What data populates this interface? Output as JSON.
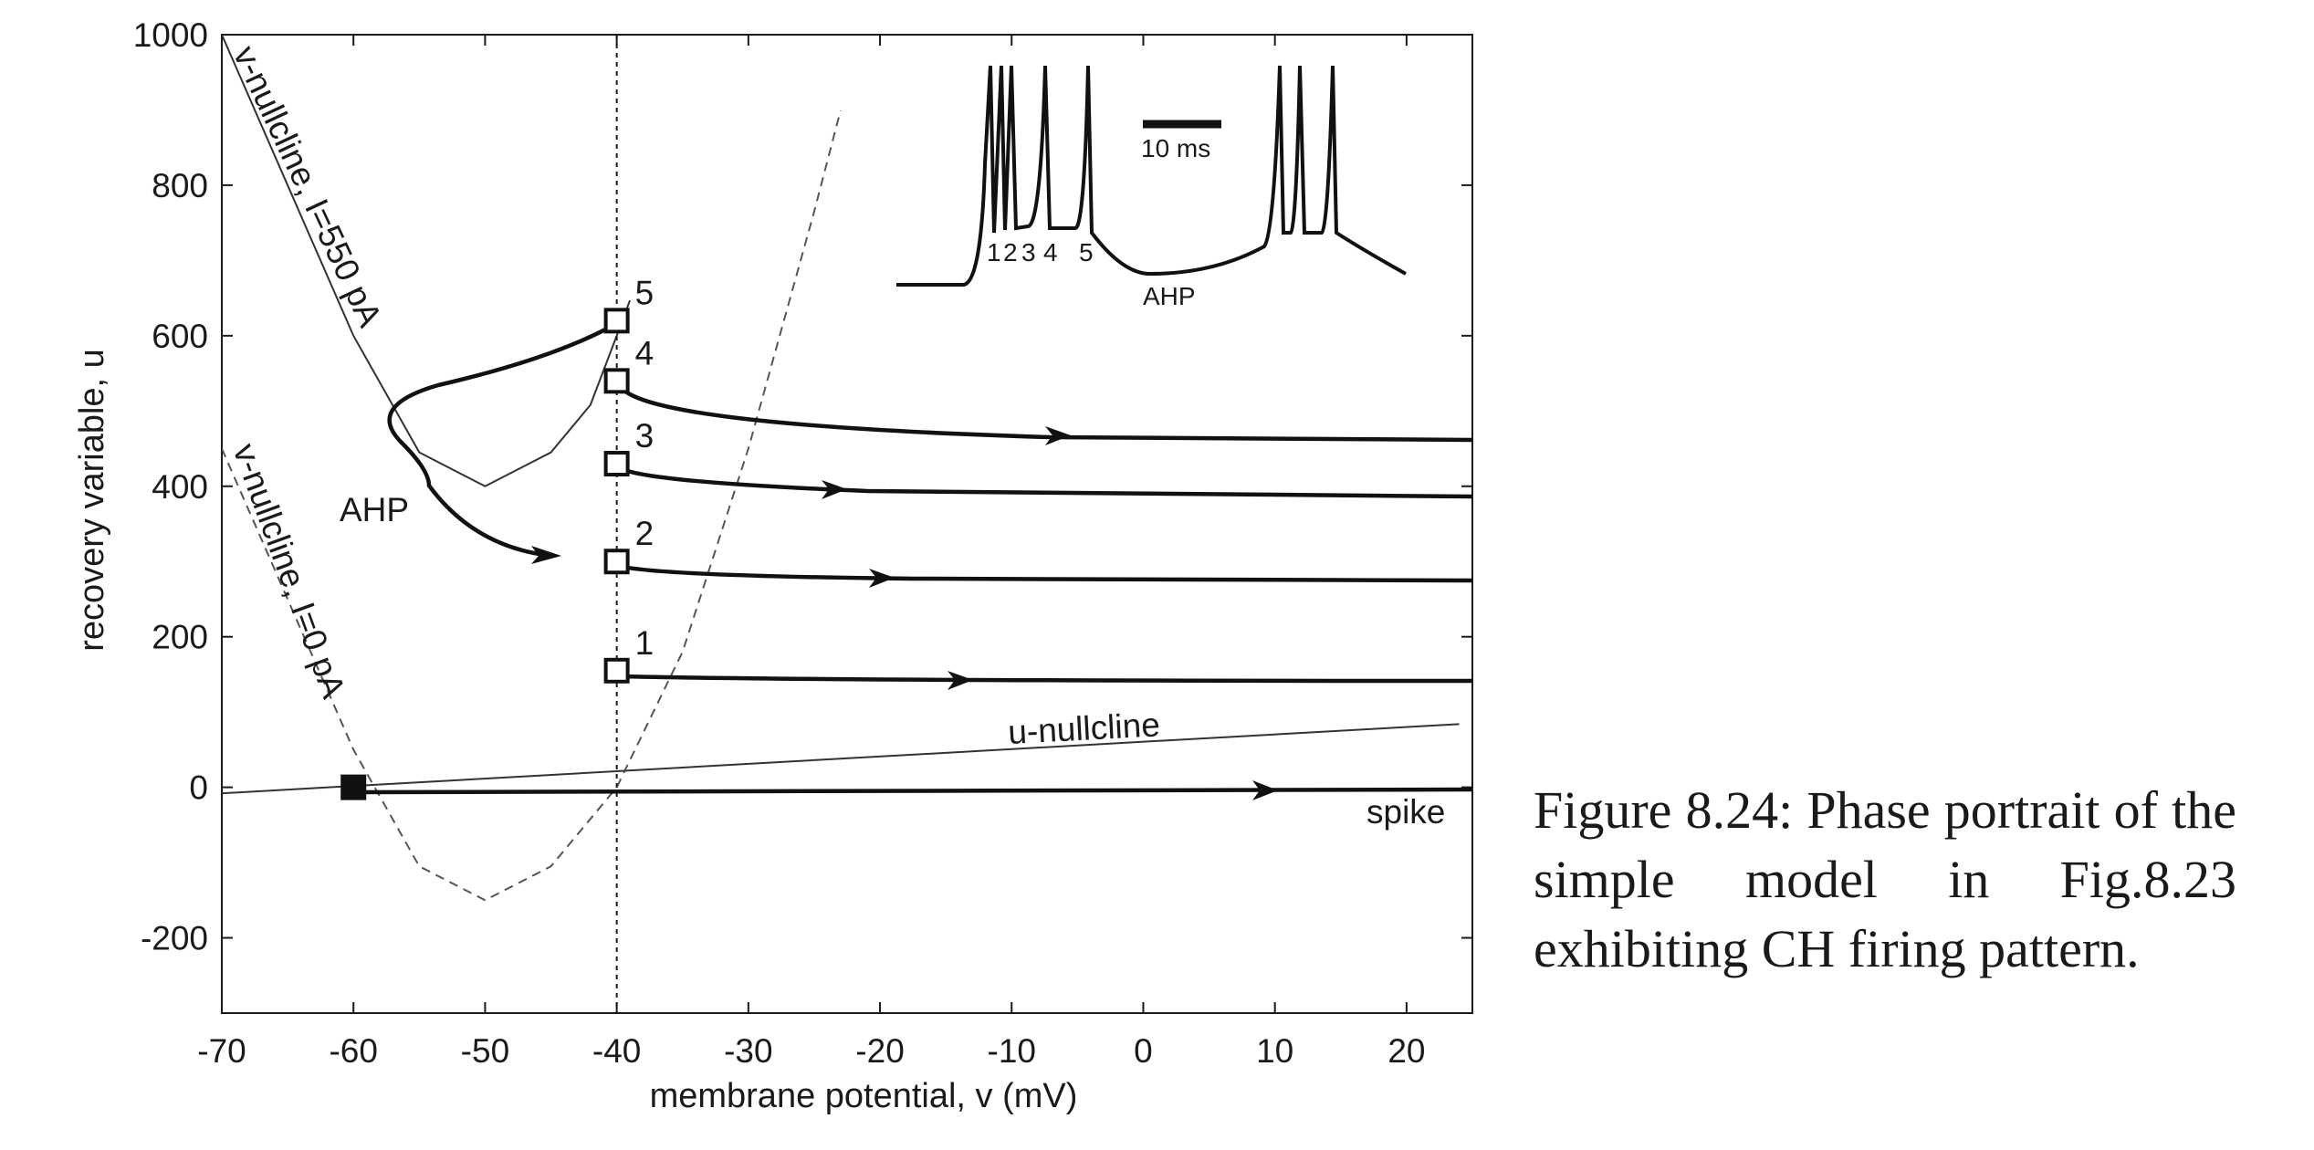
{
  "caption": "Figure 8.24: Phase portrait of the simple model in Fig.8.23 exhibiting CH firing pattern.",
  "chart_data": {
    "type": "line",
    "xlabel": "membrane potential, v (mV)",
    "ylabel": "recovery variable, u",
    "xlim": [
      -70,
      25
    ],
    "ylim": [
      -300,
      1000
    ],
    "xticks": [
      -70,
      -60,
      -50,
      -40,
      -30,
      -20,
      -10,
      0,
      10,
      20
    ],
    "yticks": [
      -200,
      0,
      200,
      400,
      600,
      800,
      1000
    ],
    "grid": false,
    "series": [
      {
        "name": "v-nullcline, I=550 pA",
        "style": "solid-thin",
        "x": [
          -70,
          -65,
          -60,
          -55,
          -50,
          -45,
          -42,
          -40,
          -39
        ],
        "y": [
          1000,
          800,
          600,
          445,
          400,
          445,
          508,
          600,
          647
        ]
      },
      {
        "name": "v-nullcline, I=0 pA",
        "style": "dashed",
        "x": [
          -70,
          -65,
          -60,
          -55,
          -50,
          -45,
          -40,
          -35,
          -30,
          -25,
          -23
        ],
        "y": [
          450,
          250,
          50,
          -105,
          -150,
          -105,
          0,
          180,
          450,
          765,
          899
        ]
      },
      {
        "name": "u-nullcline",
        "style": "solid-thin",
        "x": [
          -70,
          24
        ],
        "y": [
          -8,
          84
        ]
      }
    ],
    "markers": {
      "reset_points": [
        {
          "label": "1",
          "v": -40,
          "u": 155
        },
        {
          "label": "2",
          "v": -40,
          "u": 300
        },
        {
          "label": "3",
          "v": -40,
          "u": 430
        },
        {
          "label": "4",
          "v": -40,
          "u": 540
        },
        {
          "label": "5",
          "v": -40,
          "u": 620
        }
      ],
      "rest_point": {
        "v": -60,
        "u": 0
      }
    },
    "annotations": {
      "v_nullcline_550": "v-nullcline, I=550 pA",
      "v_nullcline_0": "v-nullcline, I=0 pA",
      "u_nullcline": "u-nullcline",
      "spike": "spike",
      "ahp": "AHP"
    },
    "inset": {
      "scale_bar": "10 ms",
      "spike_labels": [
        "1",
        "2",
        "3",
        "4",
        "5"
      ],
      "ahp": "AHP"
    }
  }
}
